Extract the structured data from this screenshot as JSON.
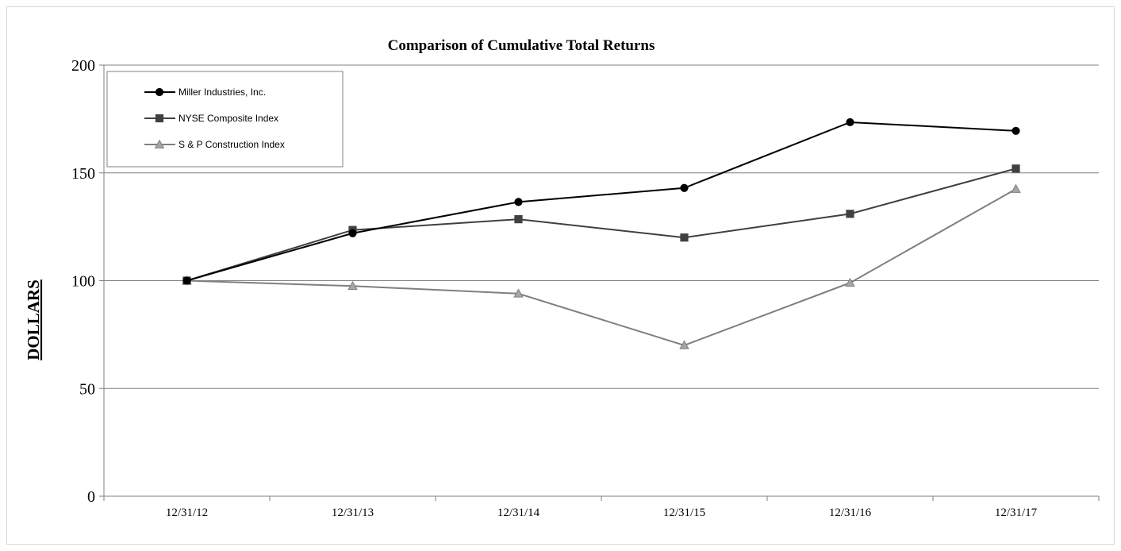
{
  "chart_data": {
    "type": "line",
    "title": "Comparison of Cumulative Total Returns",
    "ylabel": "DOLLARS",
    "xlabel": "",
    "categories": [
      "12/31/12",
      "12/31/13",
      "12/31/14",
      "12/31/15",
      "12/31/16",
      "12/31/17"
    ],
    "ylim": [
      0,
      200
    ],
    "yticks": [
      0,
      50,
      100,
      150,
      200
    ],
    "ytick_labels": [
      "0",
      "50",
      "100",
      "150",
      "200"
    ],
    "grid": true,
    "legend_position": "top-left",
    "series": [
      {
        "name": "Miller Industries, Inc.",
        "marker": "circle",
        "color": "#000000",
        "values": [
          100,
          122,
          136.5,
          143,
          173.5,
          169.5
        ]
      },
      {
        "name": "NYSE Composite Index",
        "marker": "square",
        "color": "#404040",
        "values": [
          100,
          123.5,
          128.5,
          120,
          131,
          152
        ]
      },
      {
        "name": "S & P Construction Index",
        "marker": "triangle",
        "color": "#7f7f7f",
        "marker_fill": "#a6a6a6",
        "values": [
          100,
          97.5,
          94,
          70,
          99,
          142.5
        ]
      }
    ]
  }
}
